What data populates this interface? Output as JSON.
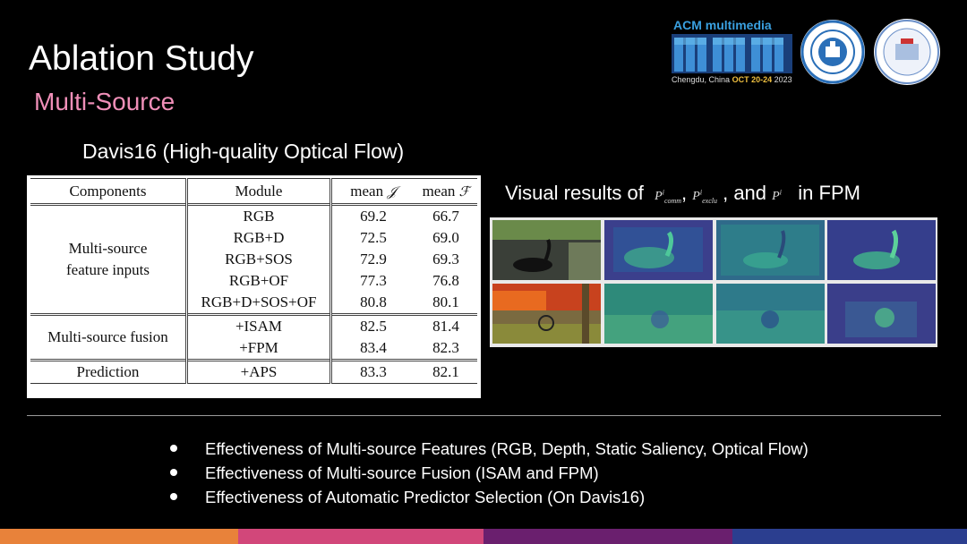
{
  "slide": {
    "title": "Ablation Study",
    "subtitle": "Multi-Source",
    "subtitle_color": "#f08fb8"
  },
  "logos": {
    "acm_text": "ACM multimedia",
    "location": "Chengdu, China",
    "dates": "OCT 20-24",
    "year": "2023",
    "seal1_name": "dalian-university-of-technology-seal-icon",
    "seal2_name": "peng-cheng-laboratory-seal-icon"
  },
  "table": {
    "caption": "Davis16 (High-quality Optical Flow)",
    "headers": [
      "Components",
      "Module",
      "mean",
      "𝒥",
      "mean",
      "ℱ"
    ],
    "groups": [
      {
        "component": [
          "Multi-source",
          "feature inputs"
        ],
        "rows": [
          {
            "module": "RGB",
            "j": "69.2",
            "f": "66.7"
          },
          {
            "module": "RGB+D",
            "j": "72.5",
            "f": "69.0"
          },
          {
            "module": "RGB+SOS",
            "j": "72.9",
            "f": "69.3"
          },
          {
            "module": "RGB+OF",
            "j": "77.3",
            "f": "76.8"
          },
          {
            "module": "RGB+D+SOS+OF",
            "j": "80.8",
            "f": "80.1"
          }
        ]
      },
      {
        "component": [
          "Multi-source fusion"
        ],
        "rows": [
          {
            "module": "+ISAM",
            "j": "82.5",
            "f": "81.4"
          },
          {
            "module": "+FPM",
            "j": "83.4",
            "f": "82.3"
          }
        ]
      },
      {
        "component": [
          "Prediction"
        ],
        "rows": [
          {
            "module": "+APS",
            "j": "83.3",
            "f": "82.1"
          }
        ]
      }
    ]
  },
  "visual": {
    "caption_prefix": "Visual results of",
    "sym_comm": "P",
    "sym_comm_sub": "comm",
    "sym_comm_sup": "i",
    "sym_exclu": "P",
    "sym_exclu_sub": "exclu",
    "sym_exclu_sup": "i",
    "and_text": ", and",
    "sym_p": "P",
    "sym_p_sup": "i",
    "caption_suffix": "in FPM",
    "comma": ","
  },
  "bullets": [
    "Effectiveness of Multi-source Features (RGB, Depth, Static Saliency, Optical Flow)",
    "Effectiveness of Multi-source Fusion (ISAM and FPM)",
    "Effectiveness of Automatic Predictor Selection (On Davis16)"
  ],
  "footer_colors": [
    "#e8823a",
    "#d2477a",
    "#6a1f6e",
    "#2b3e8f"
  ]
}
